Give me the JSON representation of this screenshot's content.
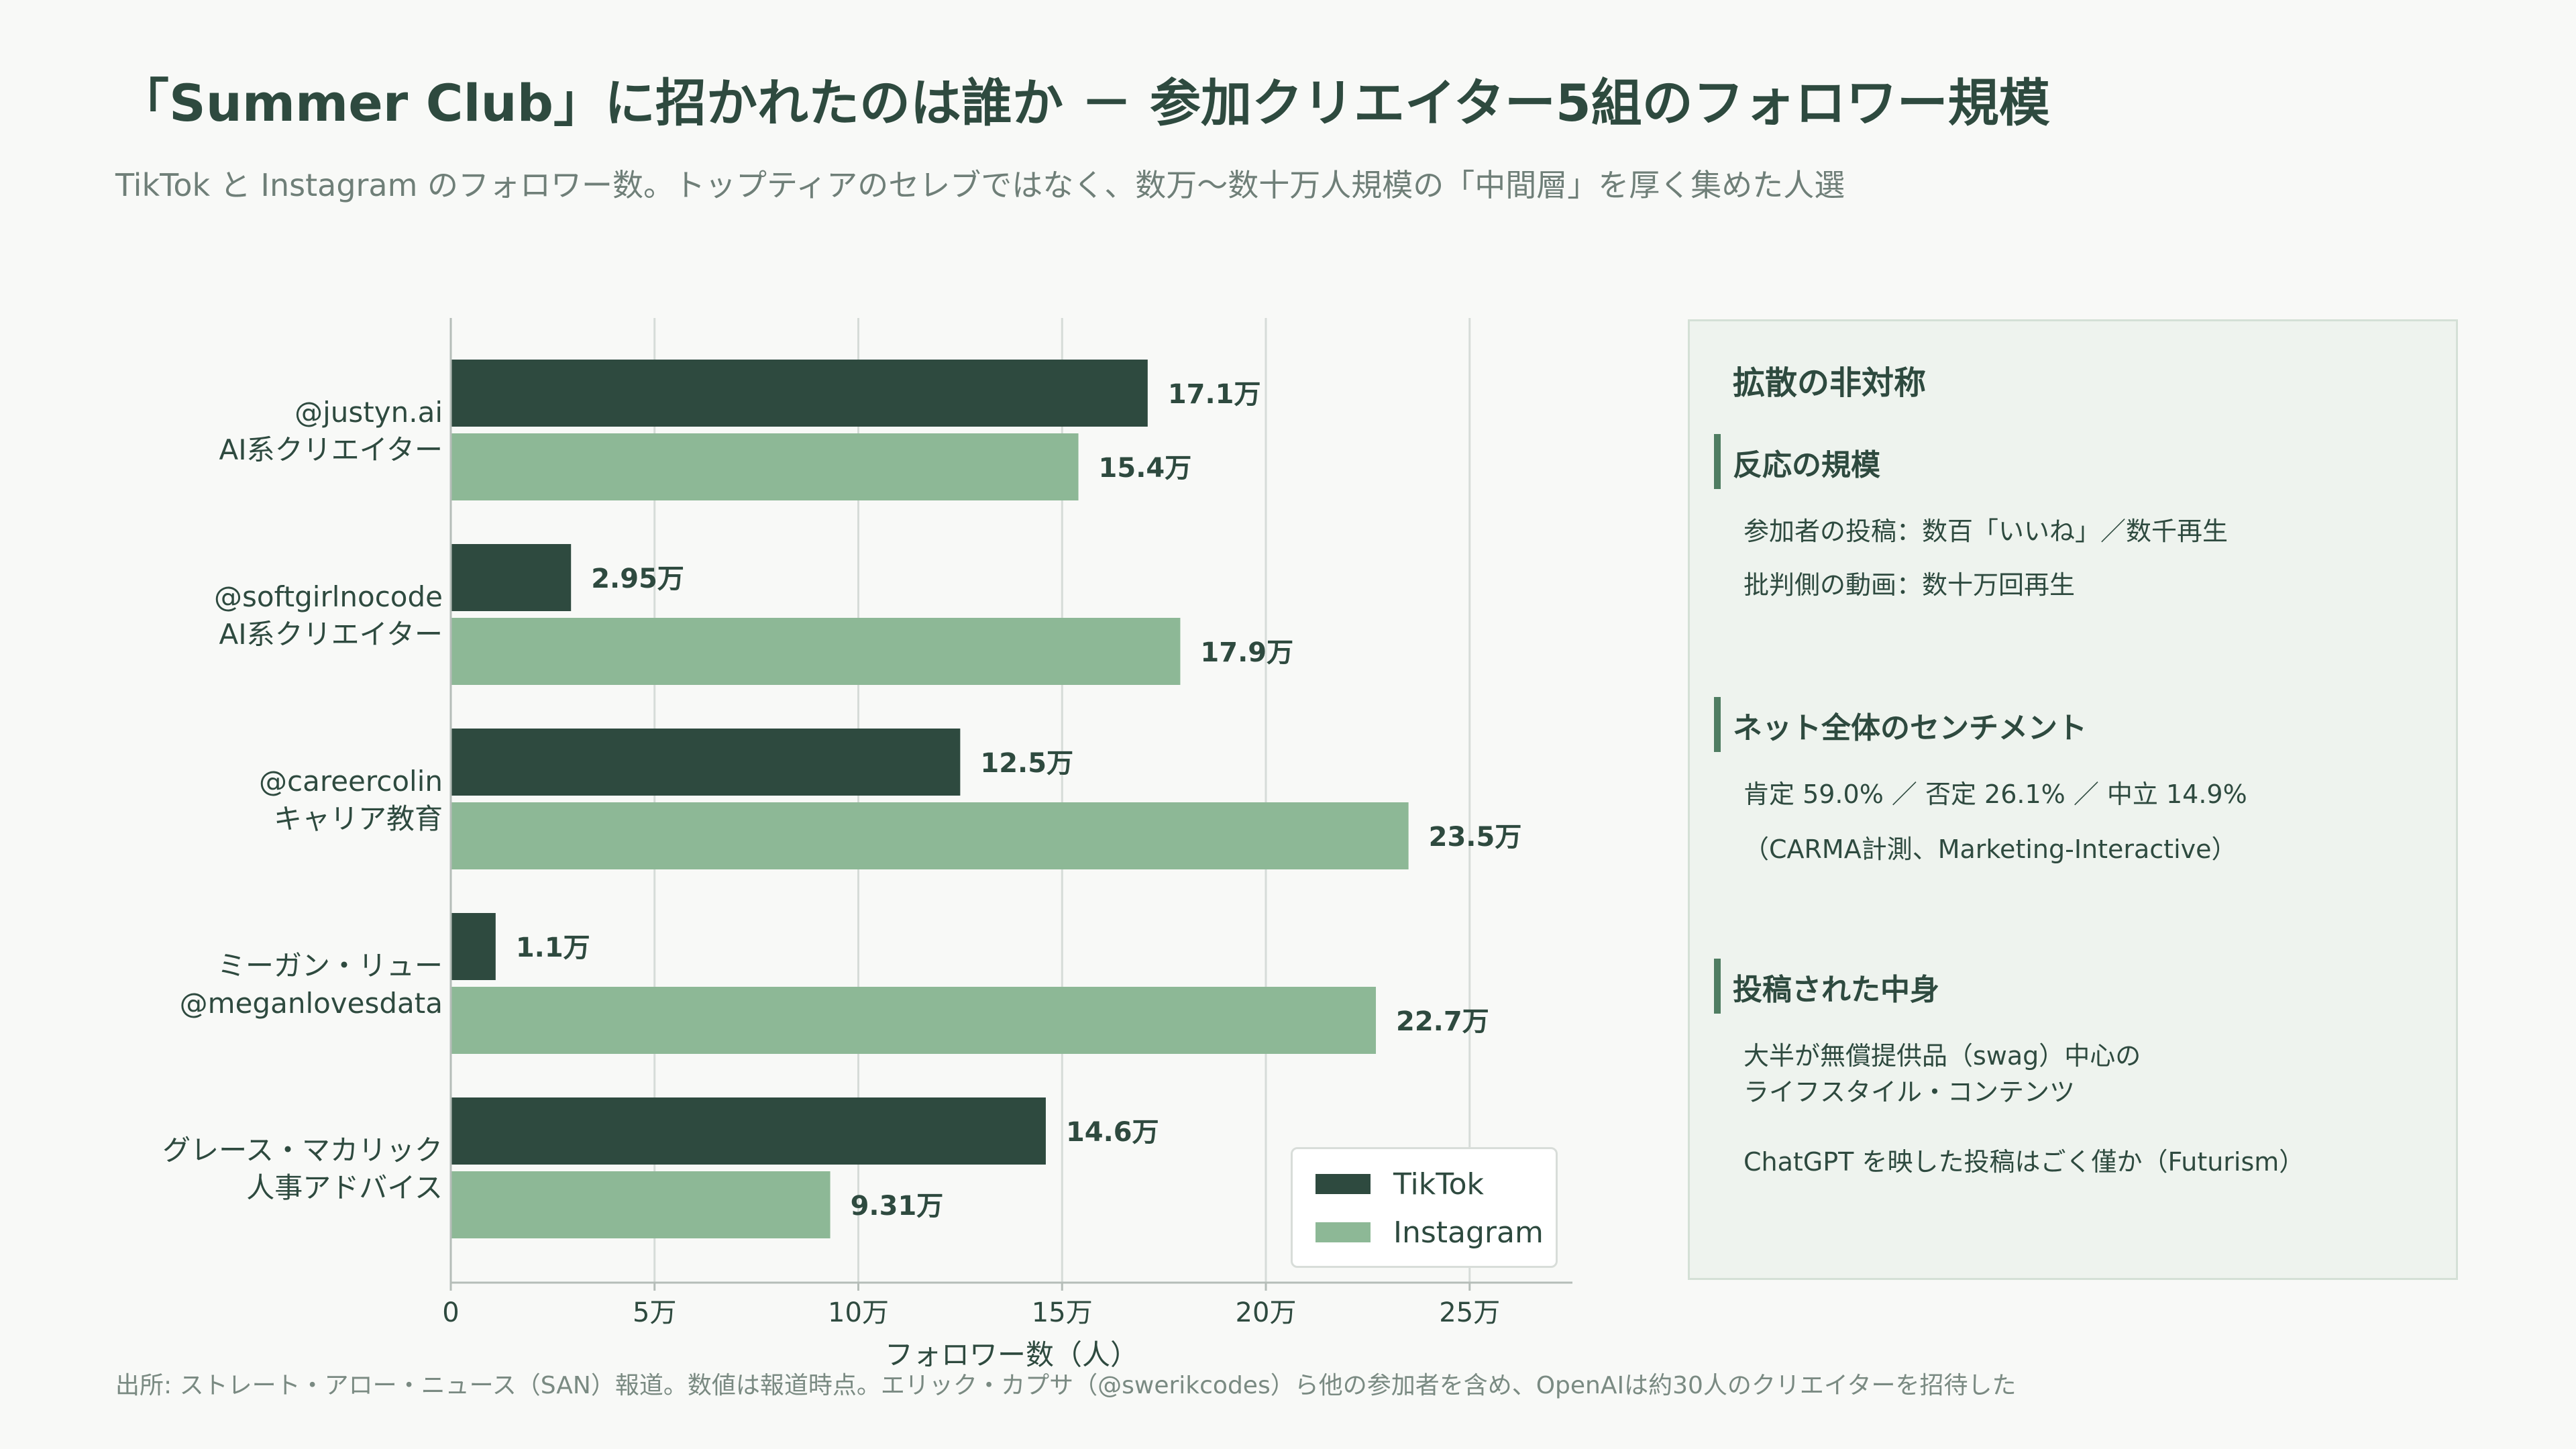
{
  "title": "「Summer Club」に招かれたのは誰か － 参加クリエイター5組のフォロワー規模",
  "subtitle": "TikTok と Instagram のフォロワー数。トップティアのセレブではなく、数万〜数十万人規模の「中間層」を厚く集めた人選",
  "source": "出所: ストレート・アロー・ニュース（SAN）報道。数値は報道時点。エリック・カプサ（@swerikcodes）ら他の参加者を含め、OpenAIは約30人のクリエイターを招待した",
  "colors": {
    "tiktok": "#2e4a3f",
    "instagram": "#8db896",
    "grid": "#d6dcd8",
    "text": "#2e4a3f"
  },
  "chart_data": {
    "type": "bar",
    "orientation": "horizontal",
    "categories": [
      [
        "@justyn.ai",
        "AI系クリエイター"
      ],
      [
        "@softgirlnocode",
        "AI系クリエイター"
      ],
      [
        "@careercolin",
        "キャリア教育"
      ],
      [
        "ミーガン・リュー",
        "@meganlovesdata"
      ],
      [
        "グレース・マカリック",
        "人事アドバイス"
      ]
    ],
    "series": [
      {
        "name": "TikTok",
        "values": [
          171000,
          29500,
          125000,
          11000,
          146000
        ],
        "labels": [
          "17.1万",
          "2.95万",
          "12.5万",
          "1.1万",
          "14.6万"
        ]
      },
      {
        "name": "Instagram",
        "values": [
          154000,
          179000,
          235000,
          227000,
          93100
        ],
        "labels": [
          "15.4万",
          "17.9万",
          "23.5万",
          "22.7万",
          "9.31万"
        ]
      }
    ],
    "xlabel": "フォロワー数（人）",
    "xlim": [
      0,
      275000
    ],
    "xticks": [
      0,
      50000,
      100000,
      150000,
      200000,
      250000
    ],
    "xtick_labels": [
      "0",
      "5万",
      "10万",
      "15万",
      "20万",
      "25万"
    ],
    "grid": "vertical",
    "legend": "bottom-right"
  },
  "panel": {
    "title": "拡散の非対称",
    "sections": [
      {
        "heading": "反応の規模",
        "lines": [
          "参加者の投稿：数百「いいね」／数千再生",
          "批判側の動画：数十万回再生"
        ]
      },
      {
        "heading": "ネット全体のセンチメント",
        "lines": [
          "肯定 59.0% ／ 否定 26.1% ／ 中立 14.9%",
          "（CARMA計測、Marketing-Interactive）"
        ]
      },
      {
        "heading": "投稿された中身",
        "lines": [
          "大半が無償提供品（swag）中心の",
          "ライフスタイル・コンテンツ",
          "ChatGPT を映した投稿はごく僅か（Futurism）"
        ]
      }
    ]
  }
}
